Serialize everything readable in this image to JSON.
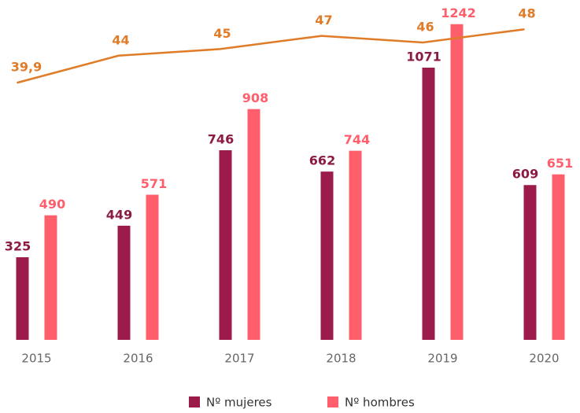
{
  "chart_data": {
    "type": "bar-line",
    "categories": [
      "2015",
      "2016",
      "2017",
      "2018",
      "2019",
      "2020"
    ],
    "series": [
      {
        "name": "Nº mujeres",
        "color": "#9b1b4b",
        "values": [
          325,
          449,
          746,
          662,
          1071,
          609
        ]
      },
      {
        "name": "Nº hombres",
        "color": "#ff5f6d",
        "values": [
          490,
          571,
          908,
          744,
          1242,
          651
        ]
      },
      {
        "color": "#e07b28",
        "axis": "y2",
        "values": [
          39.9,
          44,
          45,
          47,
          46,
          48
        ],
        "value_labels": [
          "39,9",
          "44",
          "45",
          "47",
          "46",
          "48"
        ]
      }
    ],
    "ylim": [
      0,
      1300
    ],
    "y2lim": [
      1,
      51
    ]
  }
}
